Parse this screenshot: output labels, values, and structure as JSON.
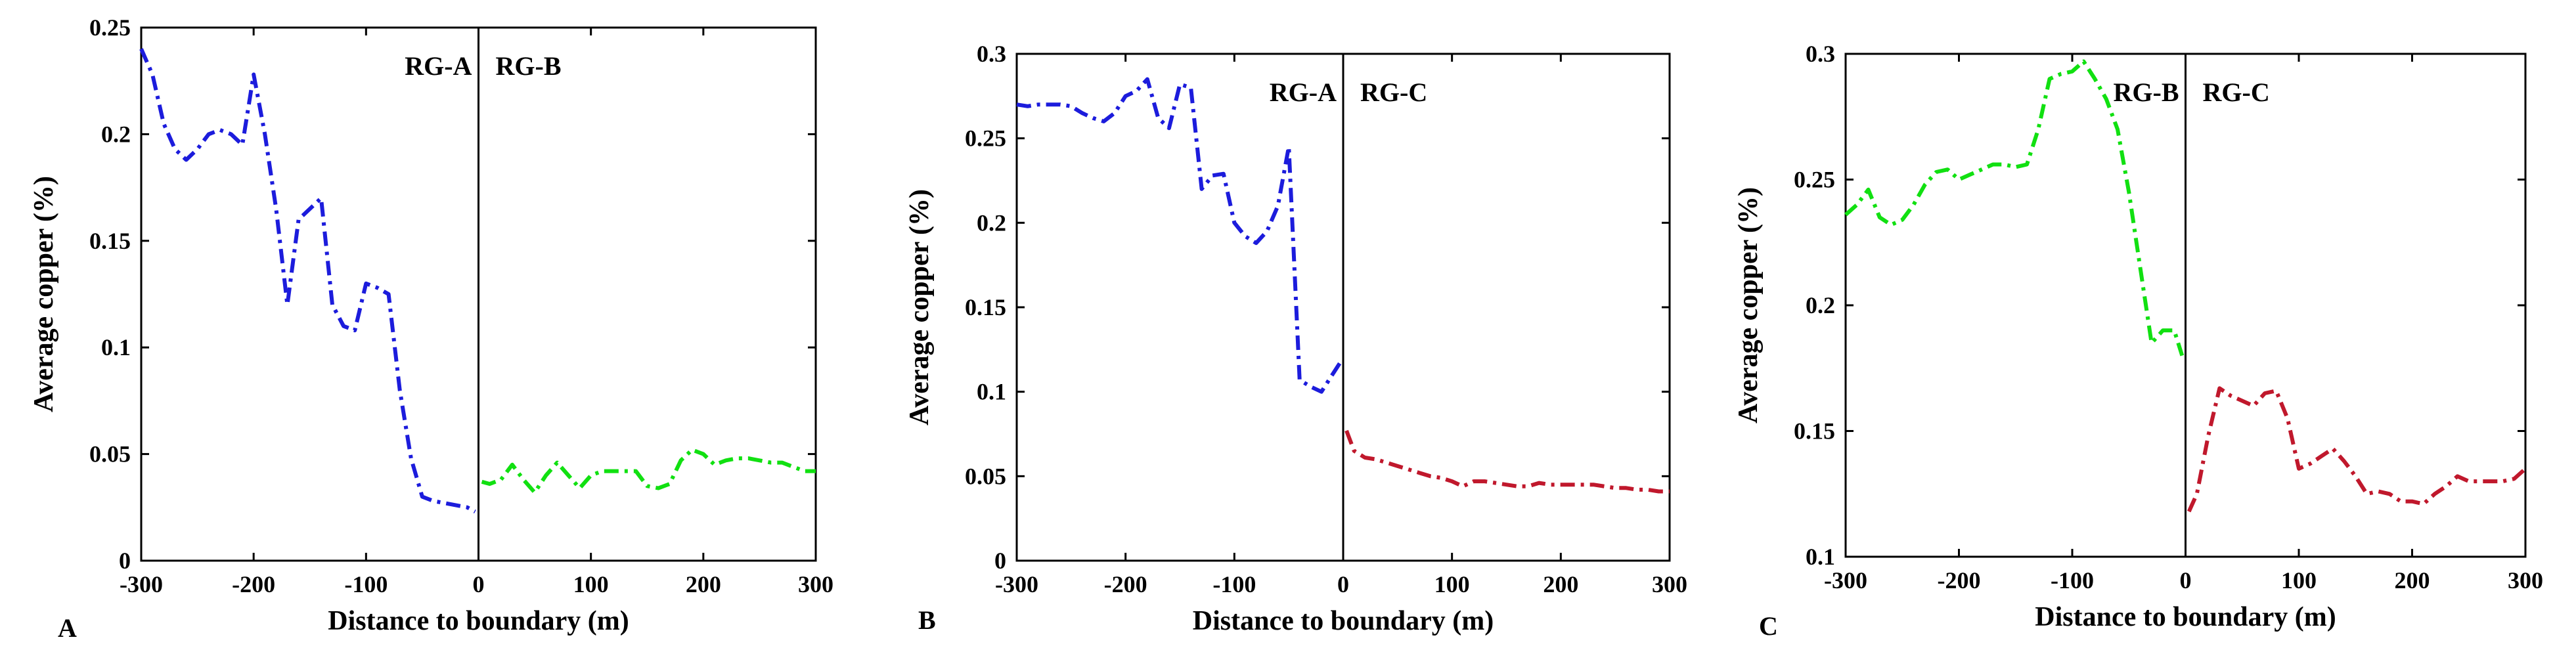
{
  "chart_data": [
    {
      "type": "line",
      "panel_label": "A",
      "xlabel": "Distance to boundary (m)",
      "ylabel": "Average copper (%)",
      "xlim": [
        -300,
        300
      ],
      "ylim": [
        0,
        0.25
      ],
      "xticks": [
        "-300",
        "-200",
        "-100",
        "0",
        "100",
        "200",
        "300"
      ],
      "xtick_values": [
        -300,
        -200,
        -100,
        0,
        100,
        200,
        300
      ],
      "yticks": [
        "0",
        "0.05",
        "0.1",
        "0.15",
        "0.2",
        "0.25"
      ],
      "ytick_values": [
        0,
        0.05,
        0.1,
        0.15,
        0.2,
        0.25
      ],
      "boundary_x": 0,
      "region_labels": {
        "left": "RG-A",
        "right": "RG-B"
      },
      "series": [
        {
          "name": "RG-A",
          "color": "#1c1cdc",
          "x": [
            -300,
            -290,
            -280,
            -270,
            -260,
            -250,
            -240,
            -230,
            -220,
            -210,
            -200,
            -190,
            -180,
            -170,
            -160,
            -150,
            -140,
            -130,
            -120,
            -110,
            -100,
            -90,
            -80,
            -70,
            -60,
            -50,
            -40,
            -30,
            -20,
            -10,
            -3
          ],
          "y": [
            0.24,
            0.228,
            0.205,
            0.193,
            0.188,
            0.193,
            0.2,
            0.202,
            0.2,
            0.195,
            0.228,
            0.2,
            0.165,
            0.12,
            0.16,
            0.165,
            0.17,
            0.12,
            0.11,
            0.108,
            0.13,
            0.128,
            0.125,
            0.08,
            0.048,
            0.03,
            0.028,
            0.027,
            0.026,
            0.025,
            0.023
          ]
        },
        {
          "name": "RG-B",
          "color": "#11e011",
          "x": [
            3,
            10,
            20,
            30,
            40,
            50,
            60,
            70,
            80,
            90,
            100,
            110,
            120,
            130,
            140,
            150,
            160,
            170,
            180,
            190,
            200,
            210,
            220,
            230,
            240,
            250,
            260,
            270,
            280,
            290,
            300
          ],
          "y": [
            0.037,
            0.036,
            0.038,
            0.045,
            0.038,
            0.032,
            0.04,
            0.046,
            0.04,
            0.034,
            0.04,
            0.042,
            0.042,
            0.042,
            0.042,
            0.035,
            0.034,
            0.036,
            0.047,
            0.052,
            0.05,
            0.045,
            0.047,
            0.048,
            0.048,
            0.047,
            0.046,
            0.046,
            0.044,
            0.042,
            0.042
          ]
        }
      ]
    },
    {
      "type": "line",
      "panel_label": "B",
      "xlabel": "Distance to boundary (m)",
      "ylabel": "Average copper (%)",
      "xlim": [
        -300,
        300
      ],
      "ylim": [
        0,
        0.3
      ],
      "xticks": [
        "-300",
        "-200",
        "-100",
        "0",
        "100",
        "200",
        "300"
      ],
      "xtick_values": [
        -300,
        -200,
        -100,
        0,
        100,
        200,
        300
      ],
      "yticks": [
        "0",
        "0.05",
        "0.1",
        "0.15",
        "0.2",
        "0.25",
        "0.3"
      ],
      "ytick_values": [
        0,
        0.05,
        0.1,
        0.15,
        0.2,
        0.25,
        0.3
      ],
      "boundary_x": 0,
      "region_labels": {
        "left": "RG-A",
        "right": "RG-C"
      },
      "series": [
        {
          "name": "RG-A",
          "color": "#1c1cdc",
          "x": [
            -300,
            -290,
            -280,
            -270,
            -260,
            -250,
            -240,
            -230,
            -220,
            -210,
            -200,
            -190,
            -180,
            -170,
            -160,
            -150,
            -140,
            -130,
            -120,
            -110,
            -100,
            -90,
            -80,
            -70,
            -60,
            -50,
            -40,
            -30,
            -20,
            -10,
            -3
          ],
          "y": [
            0.27,
            0.269,
            0.27,
            0.27,
            0.27,
            0.269,
            0.265,
            0.262,
            0.26,
            0.265,
            0.275,
            0.278,
            0.285,
            0.262,
            0.256,
            0.282,
            0.28,
            0.22,
            0.228,
            0.229,
            0.2,
            0.192,
            0.188,
            0.195,
            0.21,
            0.245,
            0.107,
            0.103,
            0.1,
            0.11,
            0.117
          ]
        },
        {
          "name": "RG-C",
          "color": "#c0182c",
          "x": [
            3,
            10,
            20,
            30,
            40,
            50,
            60,
            70,
            80,
            90,
            100,
            110,
            120,
            130,
            140,
            150,
            160,
            170,
            180,
            190,
            200,
            210,
            220,
            230,
            240,
            250,
            260,
            270,
            280,
            290,
            300
          ],
          "y": [
            0.077,
            0.065,
            0.061,
            0.06,
            0.058,
            0.056,
            0.054,
            0.052,
            0.05,
            0.049,
            0.047,
            0.044,
            0.047,
            0.047,
            0.046,
            0.045,
            0.044,
            0.044,
            0.046,
            0.045,
            0.045,
            0.045,
            0.045,
            0.045,
            0.044,
            0.043,
            0.043,
            0.042,
            0.042,
            0.041,
            0.041
          ]
        }
      ]
    },
    {
      "type": "line",
      "panel_label": "C",
      "xlabel": "Distance to boundary (m)",
      "ylabel": "Average copper (%)",
      "xlim": [
        -300,
        300
      ],
      "ylim": [
        0.1,
        0.3
      ],
      "xticks": [
        "-300",
        "-200",
        "-100",
        "0",
        "100",
        "200",
        "300"
      ],
      "xtick_values": [
        -300,
        -200,
        -100,
        0,
        100,
        200,
        300
      ],
      "yticks": [
        "0.1",
        "0.15",
        "0.2",
        "0.25",
        "0.3"
      ],
      "ytick_values": [
        0.1,
        0.15,
        0.2,
        0.25,
        0.3
      ],
      "boundary_x": 0,
      "region_labels": {
        "left": "RG-B",
        "right": "RG-C"
      },
      "series": [
        {
          "name": "RG-B",
          "color": "#11e011",
          "x": [
            -300,
            -290,
            -280,
            -270,
            -260,
            -250,
            -240,
            -230,
            -220,
            -210,
            -200,
            -190,
            -180,
            -170,
            -160,
            -150,
            -140,
            -130,
            -120,
            -110,
            -100,
            -90,
            -80,
            -70,
            -60,
            -50,
            -40,
            -30,
            -20,
            -10,
            -3
          ],
          "y": [
            0.236,
            0.24,
            0.246,
            0.235,
            0.232,
            0.234,
            0.24,
            0.248,
            0.253,
            0.254,
            0.25,
            0.252,
            0.254,
            0.256,
            0.256,
            0.255,
            0.256,
            0.27,
            0.29,
            0.292,
            0.293,
            0.297,
            0.29,
            0.282,
            0.27,
            0.245,
            0.215,
            0.185,
            0.19,
            0.19,
            0.18
          ]
        },
        {
          "name": "RG-C",
          "color": "#c0182c",
          "x": [
            3,
            10,
            20,
            30,
            40,
            50,
            60,
            70,
            80,
            90,
            100,
            110,
            120,
            130,
            140,
            150,
            160,
            170,
            180,
            190,
            200,
            210,
            220,
            230,
            240,
            250,
            260,
            270,
            280,
            290,
            300
          ],
          "y": [
            0.118,
            0.125,
            0.148,
            0.167,
            0.164,
            0.162,
            0.16,
            0.165,
            0.166,
            0.155,
            0.135,
            0.137,
            0.14,
            0.143,
            0.138,
            0.132,
            0.125,
            0.126,
            0.125,
            0.122,
            0.122,
            0.121,
            0.125,
            0.128,
            0.132,
            0.13,
            0.13,
            0.13,
            0.13,
            0.131,
            0.135
          ]
        }
      ]
    }
  ]
}
